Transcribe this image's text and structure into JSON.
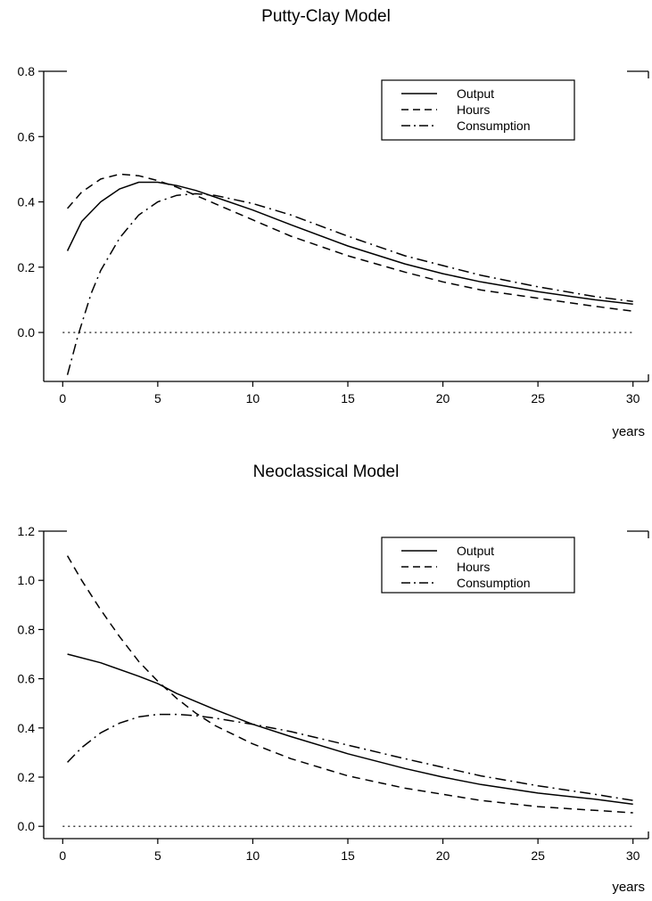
{
  "chart_data": [
    {
      "type": "line",
      "title": "Putty-Clay Model",
      "xlabel": "years",
      "ylabel": "",
      "xlim": [
        -1,
        31
      ],
      "ylim": [
        -0.15,
        0.8
      ],
      "xticks": [
        "0",
        "5",
        "10",
        "15",
        "20",
        "25",
        "30"
      ],
      "yticks": [
        "0.0",
        "0.2",
        "0.4",
        "0.6",
        "0.8"
      ],
      "legend_position": "top-right",
      "grid": false,
      "zero_line": "dotted",
      "series": [
        {
          "name": "Output",
          "style": "solid",
          "x": [
            0.25,
            1,
            2,
            3,
            4,
            5,
            6,
            7,
            8,
            10,
            12,
            15,
            18,
            20,
            22,
            25,
            28,
            30
          ],
          "y": [
            0.25,
            0.34,
            0.4,
            0.44,
            0.46,
            0.46,
            0.45,
            0.435,
            0.415,
            0.375,
            0.33,
            0.265,
            0.21,
            0.18,
            0.155,
            0.125,
            0.1,
            0.087
          ]
        },
        {
          "name": "Hours",
          "style": "dashed",
          "x": [
            0.25,
            1,
            2,
            3,
            4,
            5,
            6,
            7,
            8,
            10,
            12,
            15,
            18,
            20,
            22,
            25,
            28,
            30
          ],
          "y": [
            0.38,
            0.43,
            0.47,
            0.485,
            0.48,
            0.465,
            0.445,
            0.42,
            0.395,
            0.345,
            0.295,
            0.235,
            0.185,
            0.155,
            0.13,
            0.105,
            0.08,
            0.065
          ]
        },
        {
          "name": "Consumption",
          "style": "dash-dot",
          "x": [
            0.25,
            0.8,
            1.5,
            2,
            3,
            4,
            5,
            6,
            7,
            8,
            10,
            12,
            15,
            18,
            20,
            22,
            25,
            28,
            30
          ],
          "y": [
            -0.13,
            -0.01,
            0.12,
            0.19,
            0.29,
            0.36,
            0.4,
            0.42,
            0.425,
            0.42,
            0.395,
            0.36,
            0.295,
            0.235,
            0.205,
            0.175,
            0.14,
            0.11,
            0.095
          ]
        }
      ]
    },
    {
      "type": "line",
      "title": "Neoclassical Model",
      "xlabel": "years",
      "ylabel": "",
      "xlim": [
        -1,
        31
      ],
      "ylim": [
        -0.05,
        1.2
      ],
      "xticks": [
        "0",
        "5",
        "10",
        "15",
        "20",
        "25",
        "30"
      ],
      "yticks": [
        "0.0",
        "0.2",
        "0.4",
        "0.6",
        "0.8",
        "1.0",
        "1.2"
      ],
      "legend_position": "top-right",
      "grid": false,
      "zero_line": "dotted",
      "series": [
        {
          "name": "Output",
          "style": "solid",
          "x": [
            0.25,
            2,
            4,
            5,
            6,
            8,
            10,
            12,
            15,
            18,
            20,
            22,
            25,
            28,
            30
          ],
          "y": [
            0.7,
            0.665,
            0.61,
            0.58,
            0.54,
            0.475,
            0.415,
            0.365,
            0.295,
            0.235,
            0.2,
            0.17,
            0.135,
            0.11,
            0.09
          ]
        },
        {
          "name": "Hours",
          "style": "dashed",
          "x": [
            0.25,
            1,
            2,
            3,
            4,
            5,
            6,
            7,
            8,
            10,
            12,
            15,
            18,
            20,
            22,
            25,
            28,
            30
          ],
          "y": [
            1.1,
            1.0,
            0.88,
            0.77,
            0.67,
            0.59,
            0.52,
            0.46,
            0.41,
            0.335,
            0.275,
            0.205,
            0.155,
            0.13,
            0.105,
            0.08,
            0.065,
            0.055
          ]
        },
        {
          "name": "Consumption",
          "style": "dash-dot",
          "x": [
            0.25,
            1,
            2,
            3,
            4,
            5,
            6,
            7,
            8,
            10,
            12,
            15,
            18,
            20,
            22,
            25,
            28,
            30
          ],
          "y": [
            0.26,
            0.32,
            0.38,
            0.42,
            0.445,
            0.455,
            0.455,
            0.45,
            0.44,
            0.415,
            0.385,
            0.33,
            0.275,
            0.24,
            0.205,
            0.165,
            0.13,
            0.105
          ]
        }
      ]
    }
  ]
}
